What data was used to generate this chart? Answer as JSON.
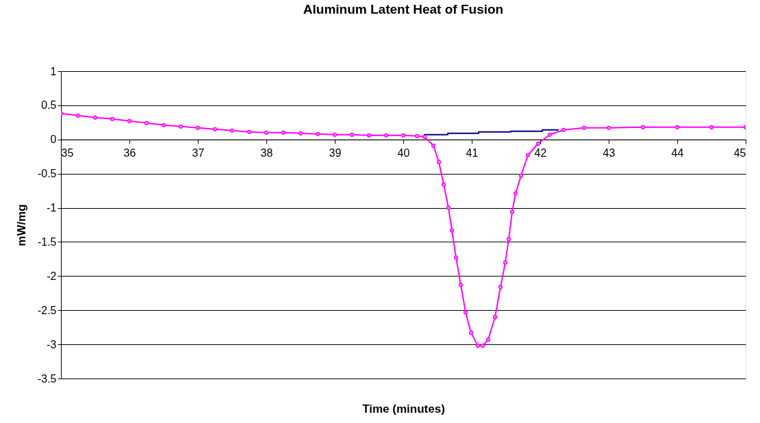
{
  "chart_data": {
    "type": "line",
    "title": "Aluminum Latent Heat of Fusion",
    "xlabel": "Time (minutes)",
    "ylabel": "mW/mg",
    "xlim": [
      35,
      45
    ],
    "xticks": [
      35,
      36,
      37,
      38,
      39,
      40,
      41,
      42,
      43,
      44,
      45
    ],
    "ylim": [
      -3.5,
      1
    ],
    "yticks": [
      -3.5,
      -3,
      -2.5,
      -2,
      -1.5,
      -1,
      -0.5,
      0,
      0.5,
      1
    ],
    "grid": "y",
    "line_style": "solid",
    "series": [
      {
        "color": "#000080",
        "marker": "none",
        "x": [
          40.3,
          40.65,
          40.65,
          41.1,
          41.1,
          41.57,
          41.57,
          42.03,
          42.03,
          42.27
        ],
        "values": [
          0.07,
          0.07,
          0.09,
          0.09,
          0.11,
          0.11,
          0.12,
          0.12,
          0.14,
          0.14
        ]
      },
      {
        "color": "#ff00ff",
        "marker": "circle",
        "x": [
          35,
          35.25,
          35.5,
          35.75,
          36,
          36.25,
          36.5,
          36.75,
          37,
          37.25,
          37.5,
          37.75,
          38,
          38.25,
          38.5,
          38.75,
          39,
          39.25,
          39.5,
          39.75,
          40,
          40.2,
          40.31,
          40.44,
          40.52,
          40.59,
          40.66,
          40.71,
          40.77,
          40.84,
          40.91,
          40.99,
          41.09,
          41.16,
          41.24,
          41.34,
          41.42,
          41.49,
          41.54,
          41.59,
          41.64,
          41.72,
          41.82,
          41.97,
          42.14,
          42.34,
          42.64,
          43,
          43.5,
          44,
          44.5,
          45
        ],
        "values": [
          0.38,
          0.35,
          0.32,
          0.3,
          0.27,
          0.24,
          0.21,
          0.19,
          0.17,
          0.15,
          0.13,
          0.11,
          0.1,
          0.1,
          0.09,
          0.08,
          0.07,
          0.07,
          0.06,
          0.06,
          0.06,
          0.05,
          0.04,
          -0.09,
          -0.33,
          -0.66,
          -1.0,
          -1.33,
          -1.73,
          -2.13,
          -2.53,
          -2.83,
          -3.02,
          -3.02,
          -2.93,
          -2.6,
          -2.16,
          -1.8,
          -1.46,
          -1.06,
          -0.79,
          -0.53,
          -0.23,
          -0.06,
          0.07,
          0.14,
          0.17,
          0.17,
          0.18,
          0.18,
          0.18,
          0.18
        ]
      }
    ]
  }
}
